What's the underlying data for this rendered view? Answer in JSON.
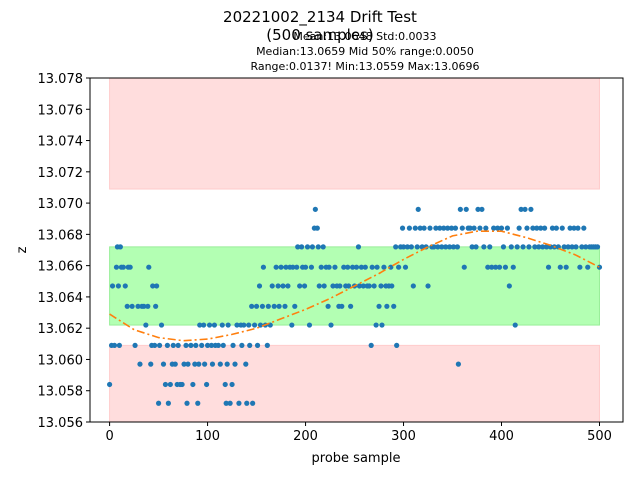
{
  "chart_data": {
    "type": "scatter",
    "title_line1": "20221002_2134 Drift Test",
    "title_line2": "(500 samples)",
    "stats": {
      "line1": "Mean:13.0648  Std:0.0033",
      "line2": "Median:13.0659  Mid 50% range:0.0050",
      "line3": "Range:0.0137!  Min:13.0559  Max:13.0696"
    },
    "xlabel": "probe sample",
    "ylabel": "z",
    "xlim": [
      -20,
      524
    ],
    "ylim": [
      13.056,
      13.078
    ],
    "xticks": [
      0,
      100,
      200,
      300,
      400,
      500
    ],
    "yticks": [
      13.056,
      13.058,
      13.06,
      13.062,
      13.064,
      13.066,
      13.068,
      13.07,
      13.072,
      13.074,
      13.076,
      13.078
    ],
    "bands": [
      {
        "role": "tolerance-low",
        "x": [
          0,
          500
        ],
        "y": [
          13.056,
          13.0609
        ],
        "color": "#ffdddd"
      },
      {
        "role": "tolerance-high",
        "x": [
          0,
          500
        ],
        "y": [
          13.0709,
          13.078
        ],
        "color": "#ffdddd"
      },
      {
        "role": "mid-50",
        "x": [
          0,
          500
        ],
        "y": [
          13.0622,
          13.0672
        ],
        "color": "#b3ffb3"
      }
    ],
    "series": [
      {
        "role": "measurements",
        "color": "#1f77b4",
        "points": [
          [
            0,
            13.0584
          ],
          [
            2,
            13.0609
          ],
          [
            3,
            13.0647
          ],
          [
            5,
            13.0609
          ],
          [
            7,
            13.0659
          ],
          [
            8,
            13.0672
          ],
          [
            9,
            13.0647
          ],
          [
            10,
            13.0609
          ],
          [
            11,
            13.0672
          ],
          [
            12,
            13.0659
          ],
          [
            14,
            13.0659
          ],
          [
            16,
            13.0647
          ],
          [
            18,
            13.0634
          ],
          [
            19,
            13.0659
          ],
          [
            21,
            13.0659
          ],
          [
            23,
            13.0634
          ],
          [
            26,
            13.0609
          ],
          [
            29,
            13.0634
          ],
          [
            31,
            13.0597
          ],
          [
            33,
            13.0634
          ],
          [
            35,
            13.0634
          ],
          [
            37,
            13.0622
          ],
          [
            39,
            13.0634
          ],
          [
            40,
            13.0659
          ],
          [
            42,
            13.0597
          ],
          [
            43,
            13.0609
          ],
          [
            44,
            13.0647
          ],
          [
            46,
            13.0609
          ],
          [
            47,
            13.0634
          ],
          [
            48,
            13.0647
          ],
          [
            50,
            13.0572
          ],
          [
            51,
            13.0609
          ],
          [
            53,
            13.0622
          ],
          [
            55,
            13.0597
          ],
          [
            57,
            13.0584
          ],
          [
            59,
            13.0609
          ],
          [
            60,
            13.0572
          ],
          [
            62,
            13.0584
          ],
          [
            64,
            13.0597
          ],
          [
            65,
            13.0609
          ],
          [
            67,
            13.0597
          ],
          [
            69,
            13.0584
          ],
          [
            70,
            13.0609
          ],
          [
            72,
            13.0584
          ],
          [
            74,
            13.0584
          ],
          [
            76,
            13.0597
          ],
          [
            78,
            13.0609
          ],
          [
            79,
            13.0572
          ],
          [
            80,
            13.0597
          ],
          [
            83,
            13.0609
          ],
          [
            85,
            13.0584
          ],
          [
            87,
            13.0597
          ],
          [
            88,
            13.0609
          ],
          [
            90,
            13.0572
          ],
          [
            91,
            13.0597
          ],
          [
            92,
            13.0622
          ],
          [
            94,
            13.0609
          ],
          [
            96,
            13.0622
          ],
          [
            97,
            13.0597
          ],
          [
            99,
            13.0584
          ],
          [
            100,
            13.0609
          ],
          [
            102,
            13.0622
          ],
          [
            104,
            13.0609
          ],
          [
            105,
            13.0597
          ],
          [
            107,
            13.0622
          ],
          [
            108,
            13.0609
          ],
          [
            111,
            13.0609
          ],
          [
            113,
            13.0597
          ],
          [
            115,
            13.0622
          ],
          [
            116,
            13.0609
          ],
          [
            118,
            13.0584
          ],
          [
            119,
            13.0572
          ],
          [
            120,
            13.0597
          ],
          [
            121,
            13.0622
          ],
          [
            123,
            13.0572
          ],
          [
            125,
            13.0584
          ],
          [
            126,
            13.0609
          ],
          [
            128,
            13.0597
          ],
          [
            130,
            13.0622
          ],
          [
            132,
            13.0572
          ],
          [
            134,
            13.0622
          ],
          [
            135,
            13.0609
          ],
          [
            137,
            13.0622
          ],
          [
            139,
            13.0597
          ],
          [
            140,
            13.0572
          ],
          [
            142,
            13.0622
          ],
          [
            143,
            13.0609
          ],
          [
            145,
            13.0634
          ],
          [
            146,
            13.0572
          ],
          [
            148,
            13.0622
          ],
          [
            150,
            13.0634
          ],
          [
            151,
            13.0609
          ],
          [
            153,
            13.0647
          ],
          [
            154,
            13.0622
          ],
          [
            156,
            13.0634
          ],
          [
            157,
            13.0659
          ],
          [
            159,
            13.0622
          ],
          [
            161,
            13.0609
          ],
          [
            162,
            13.0634
          ],
          [
            164,
            13.0622
          ],
          [
            166,
            13.0647
          ],
          [
            168,
            13.0634
          ],
          [
            170,
            13.0659
          ],
          [
            172,
            13.0647
          ],
          [
            173,
            13.0634
          ],
          [
            175,
            13.0659
          ],
          [
            177,
            13.0647
          ],
          [
            179,
            13.0634
          ],
          [
            180,
            13.0659
          ],
          [
            182,
            13.0647
          ],
          [
            184,
            13.0659
          ],
          [
            186,
            13.0622
          ],
          [
            187,
            13.0659
          ],
          [
            189,
            13.0634
          ],
          [
            191,
            13.0659
          ],
          [
            192,
            13.0672
          ],
          [
            194,
            13.0647
          ],
          [
            196,
            13.0672
          ],
          [
            197,
            13.0659
          ],
          [
            199,
            13.0647
          ],
          [
            200,
            13.0659
          ],
          [
            202,
            13.0672
          ],
          [
            204,
            13.0622
          ],
          [
            206,
            13.0659
          ],
          [
            207,
            13.0672
          ],
          [
            209,
            13.0684
          ],
          [
            210,
            13.0696
          ],
          [
            212,
            13.0684
          ],
          [
            213,
            13.0672
          ],
          [
            214,
            13.0647
          ],
          [
            216,
            13.0659
          ],
          [
            218,
            13.0672
          ],
          [
            219,
            13.0647
          ],
          [
            221,
            13.0659
          ],
          [
            223,
            13.0634
          ],
          [
            224,
            13.0659
          ],
          [
            226,
            13.0622
          ],
          [
            228,
            13.0647
          ],
          [
            230,
            13.0659
          ],
          [
            232,
            13.0647
          ],
          [
            234,
            13.0634
          ],
          [
            235,
            13.0647
          ],
          [
            237,
            13.0634
          ],
          [
            239,
            13.0659
          ],
          [
            241,
            13.0647
          ],
          [
            243,
            13.0659
          ],
          [
            244,
            13.0647
          ],
          [
            246,
            13.0634
          ],
          [
            248,
            13.0659
          ],
          [
            250,
            13.0647
          ],
          [
            252,
            13.0659
          ],
          [
            254,
            13.0672
          ],
          [
            255,
            13.0647
          ],
          [
            257,
            13.0659
          ],
          [
            259,
            13.0647
          ],
          [
            261,
            13.0659
          ],
          [
            263,
            13.0647
          ],
          [
            265,
            13.0647
          ],
          [
            267,
            13.0609
          ],
          [
            268,
            13.0659
          ],
          [
            270,
            13.0647
          ],
          [
            272,
            13.0622
          ],
          [
            273,
            13.0659
          ],
          [
            275,
            13.0634
          ],
          [
            277,
            13.0647
          ],
          [
            278,
            13.0622
          ],
          [
            280,
            13.0659
          ],
          [
            282,
            13.0647
          ],
          [
            283,
            13.0634
          ],
          [
            285,
            13.0647
          ],
          [
            287,
            13.0659
          ],
          [
            288,
            13.0647
          ],
          [
            290,
            13.0634
          ],
          [
            292,
            13.0672
          ],
          [
            293,
            13.0609
          ],
          [
            295,
            13.0659
          ],
          [
            297,
            13.0672
          ],
          [
            299,
            13.0684
          ],
          [
            300,
            13.0672
          ],
          [
            302,
            13.0659
          ],
          [
            304,
            13.0672
          ],
          [
            306,
            13.0684
          ],
          [
            308,
            13.0672
          ],
          [
            310,
            13.0647
          ],
          [
            312,
            13.0684
          ],
          [
            314,
            13.0672
          ],
          [
            315,
            13.0696
          ],
          [
            317,
            13.0684
          ],
          [
            319,
            13.0672
          ],
          [
            321,
            13.0684
          ],
          [
            323,
            13.0672
          ],
          [
            325,
            13.0647
          ],
          [
            327,
            13.0684
          ],
          [
            329,
            13.0672
          ],
          [
            331,
            13.0672
          ],
          [
            333,
            13.0684
          ],
          [
            335,
            13.0672
          ],
          [
            337,
            13.0684
          ],
          [
            339,
            13.0672
          ],
          [
            341,
            13.0684
          ],
          [
            343,
            13.0672
          ],
          [
            345,
            13.0684
          ],
          [
            347,
            13.0672
          ],
          [
            349,
            13.0684
          ],
          [
            351,
            13.0672
          ],
          [
            353,
            13.0684
          ],
          [
            355,
            13.0672
          ],
          [
            356,
            13.0597
          ],
          [
            358,
            13.0696
          ],
          [
            360,
            13.0684
          ],
          [
            362,
            13.0659
          ],
          [
            364,
            13.0696
          ],
          [
            366,
            13.0684
          ],
          [
            368,
            13.0684
          ],
          [
            370,
            13.0672
          ],
          [
            372,
            13.0684
          ],
          [
            374,
            13.0672
          ],
          [
            376,
            13.0696
          ],
          [
            378,
            13.0684
          ],
          [
            380,
            13.0696
          ],
          [
            382,
            13.0672
          ],
          [
            384,
            13.0684
          ],
          [
            386,
            13.0659
          ],
          [
            388,
            13.0672
          ],
          [
            390,
            13.0659
          ],
          [
            392,
            13.0684
          ],
          [
            394,
            13.0659
          ],
          [
            396,
            13.0684
          ],
          [
            398,
            13.0659
          ],
          [
            400,
            13.0684
          ],
          [
            402,
            13.0672
          ],
          [
            404,
            13.0659
          ],
          [
            406,
            13.0684
          ],
          [
            408,
            13.0647
          ],
          [
            410,
            13.0672
          ],
          [
            412,
            13.0659
          ],
          [
            414,
            13.0622
          ],
          [
            416,
            13.0672
          ],
          [
            418,
            13.0684
          ],
          [
            420,
            13.0696
          ],
          [
            422,
            13.0672
          ],
          [
            424,
            13.0696
          ],
          [
            426,
            13.0684
          ],
          [
            428,
            13.0672
          ],
          [
            430,
            13.0696
          ],
          [
            432,
            13.0684
          ],
          [
            434,
            13.0672
          ],
          [
            436,
            13.0684
          ],
          [
            438,
            13.0672
          ],
          [
            440,
            13.0684
          ],
          [
            442,
            13.0672
          ],
          [
            444,
            13.0684
          ],
          [
            446,
            13.0672
          ],
          [
            448,
            13.0659
          ],
          [
            450,
            13.0672
          ],
          [
            452,
            13.0684
          ],
          [
            454,
            13.0672
          ],
          [
            456,
            13.0684
          ],
          [
            458,
            13.0672
          ],
          [
            460,
            13.0659
          ],
          [
            462,
            13.0684
          ],
          [
            464,
            13.0672
          ],
          [
            466,
            13.0659
          ],
          [
            468,
            13.0672
          ],
          [
            470,
            13.0684
          ],
          [
            472,
            13.0672
          ],
          [
            474,
            13.0684
          ],
          [
            476,
            13.0672
          ],
          [
            478,
            13.0684
          ],
          [
            480,
            13.0659
          ],
          [
            482,
            13.0672
          ],
          [
            484,
            13.0684
          ],
          [
            486,
            13.0672
          ],
          [
            488,
            13.0659
          ],
          [
            490,
            13.0672
          ],
          [
            492,
            13.0672
          ],
          [
            494,
            13.0672
          ],
          [
            496,
            13.0672
          ],
          [
            498,
            13.0672
          ],
          [
            500,
            13.0659
          ]
        ]
      },
      {
        "role": "trend-fit",
        "color": "#ff7f0e",
        "style": "dash-dot",
        "x": [
          0,
          25,
          50,
          75,
          100,
          125,
          150,
          175,
          200,
          225,
          250,
          275,
          300,
          325,
          350,
          375,
          400,
          425,
          450,
          475,
          500
        ],
        "y": [
          13.0629,
          13.0619,
          13.0614,
          13.0612,
          13.0613,
          13.0616,
          13.062,
          13.0626,
          13.0632,
          13.0639,
          13.0647,
          13.0655,
          13.0664,
          13.0672,
          13.0679,
          13.0682,
          13.0682,
          13.0678,
          13.0673,
          13.0667,
          13.0659
        ]
      }
    ]
  }
}
